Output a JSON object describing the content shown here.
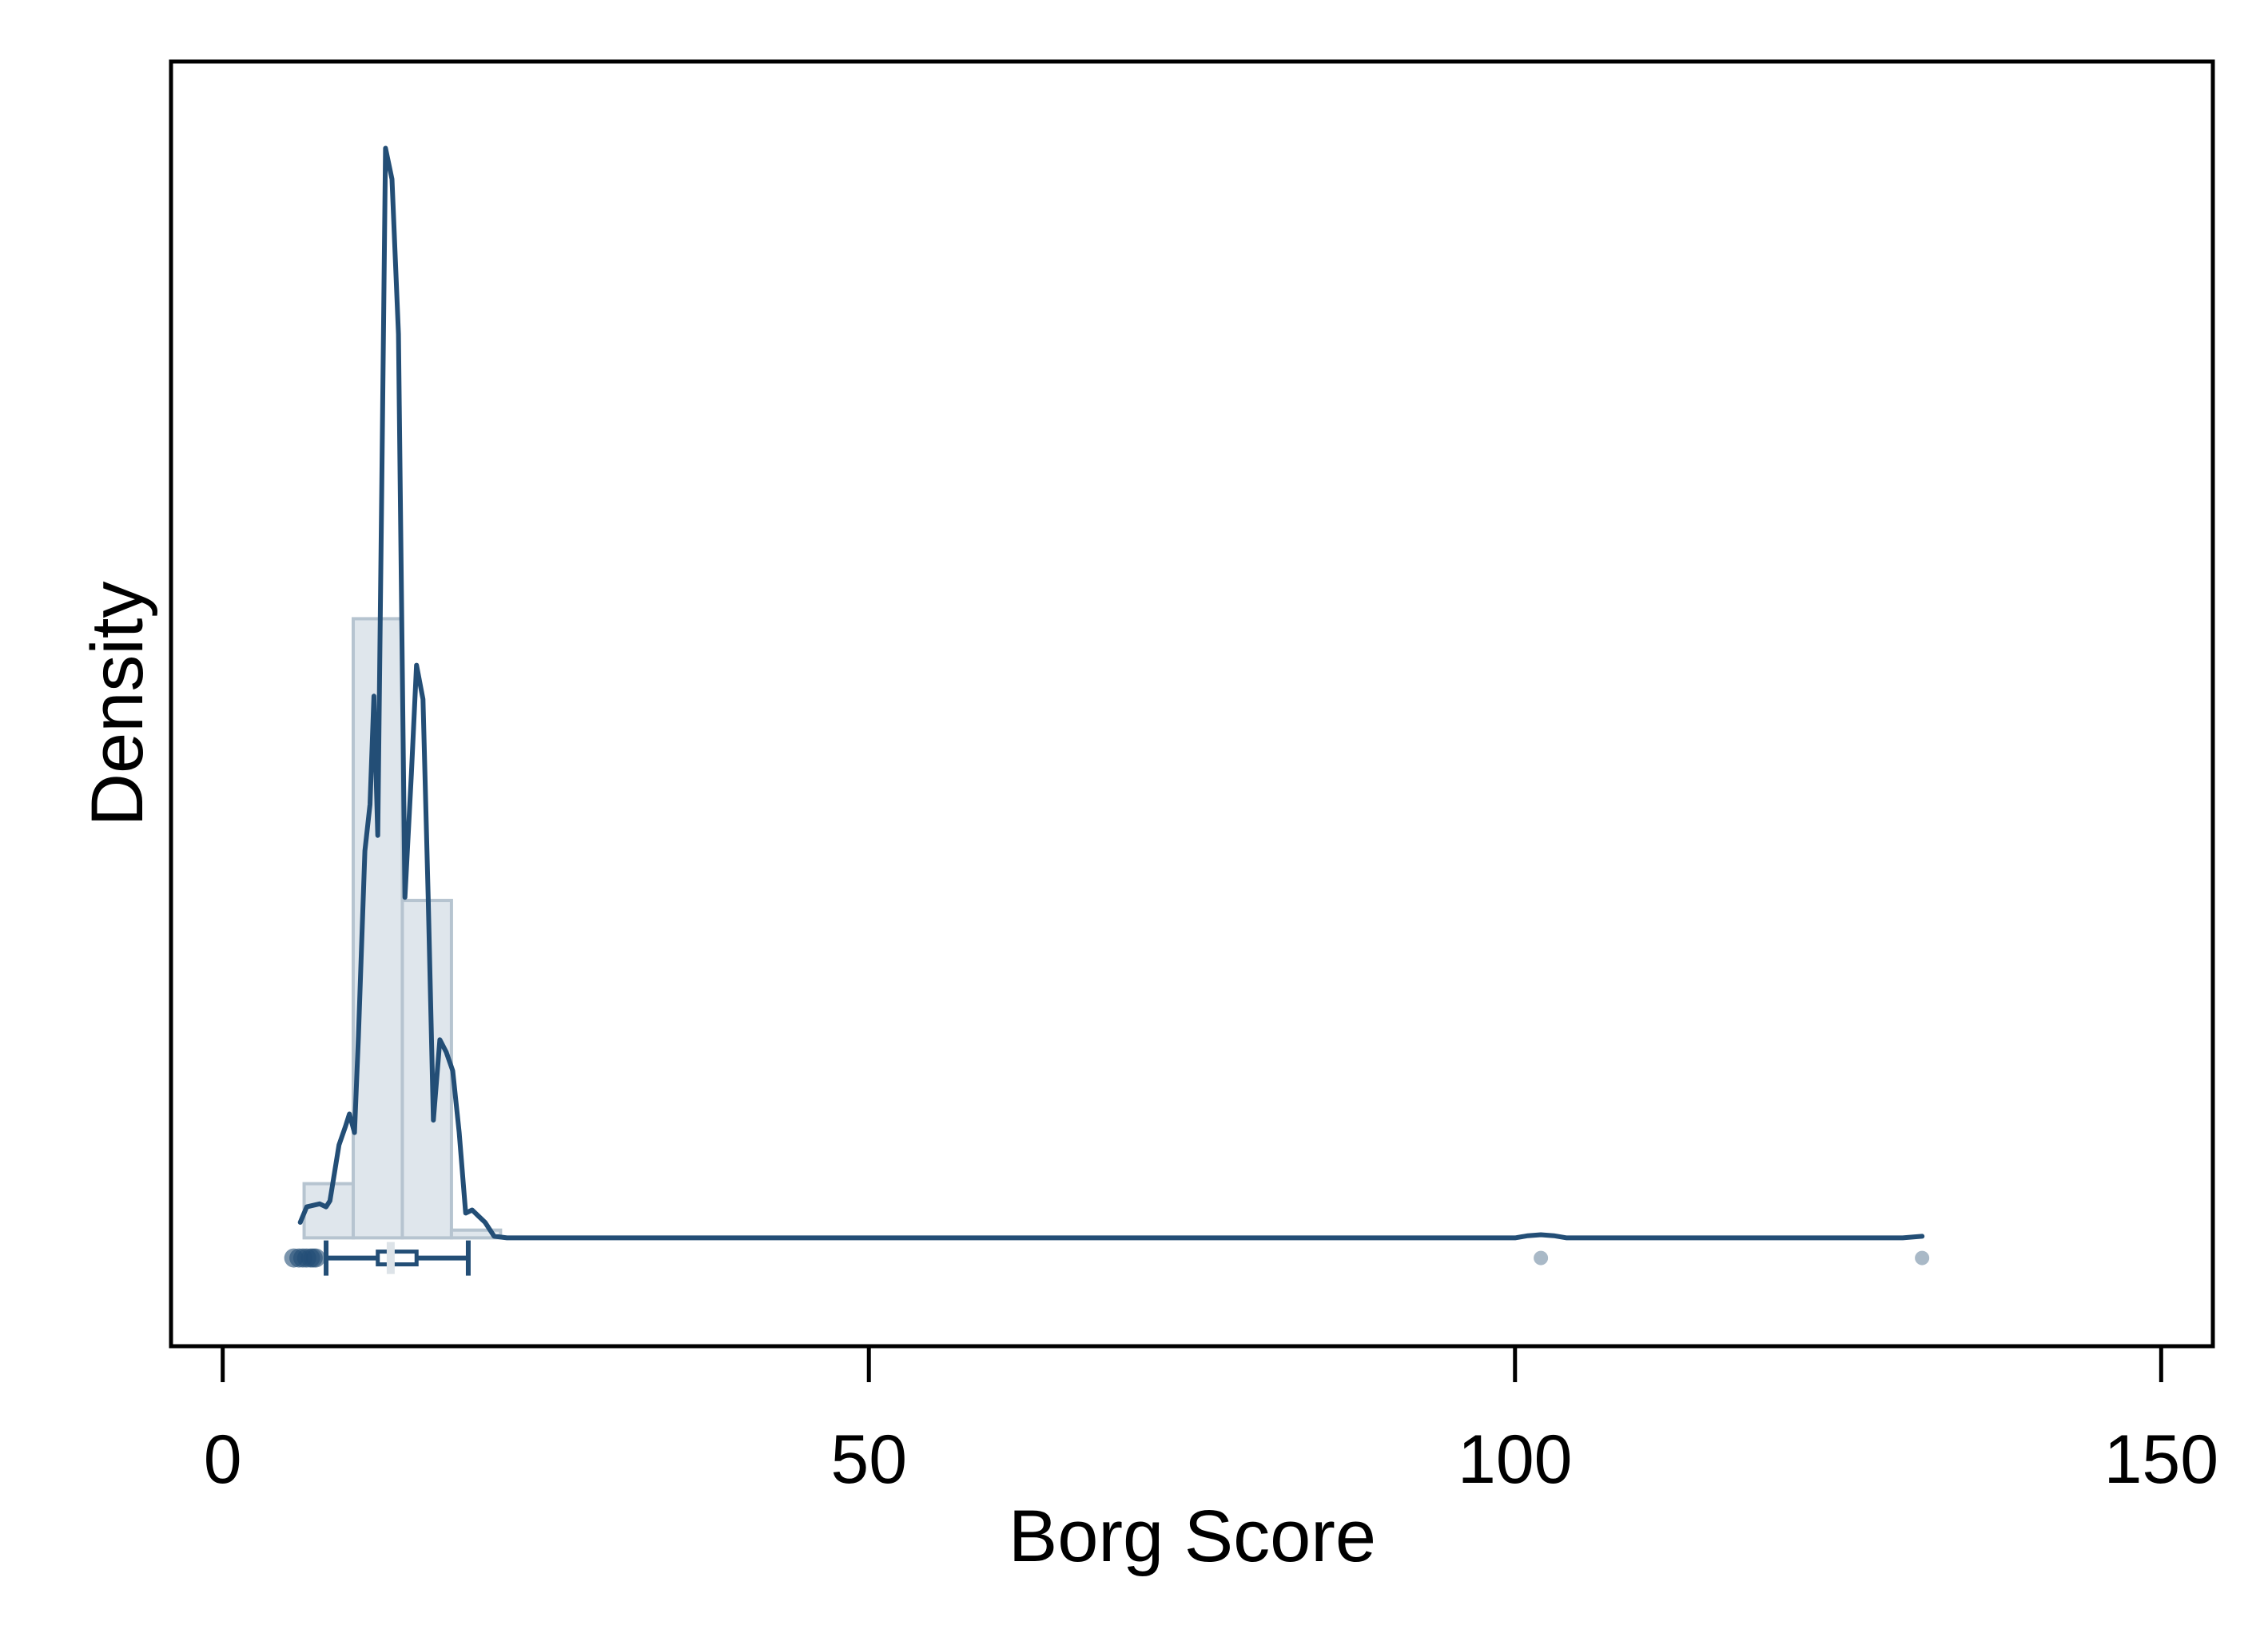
{
  "chart_data": {
    "type": "histogram",
    "xlabel": "Borg Score",
    "ylabel": "Density",
    "xlim": [
      -4,
      154
    ],
    "ylim": [
      -0.035,
      0.38
    ],
    "x_ticks": [
      0,
      50,
      100,
      150
    ],
    "y_ticks_shown": false,
    "grid": false,
    "colors": {
      "line": "#234e76",
      "bar_fill": "#dfe6ec",
      "bar_edge": "#b6c4d0",
      "outlier": "#a9b9c7"
    },
    "histogram": {
      "bin_edges": [
        6.3,
        10.1,
        13.9,
        17.7,
        21.5
      ],
      "density": [
        0.0175,
        0.2,
        0.109,
        0.0025
      ]
    },
    "kde": {
      "x": [
        6.0,
        6.5,
        7.5,
        8.0,
        8.3,
        9.0,
        9.5,
        9.8,
        10.2,
        10.5,
        11.0,
        11.4,
        11.7,
        12.0,
        12.3,
        12.6,
        13.1,
        13.6,
        14.1,
        14.6,
        15.0,
        15.5,
        15.9,
        16.3,
        16.8,
        17.3,
        17.8,
        18.3,
        18.8,
        19.3,
        19.8,
        20.3,
        21.0,
        22.0,
        30,
        50,
        70,
        90,
        100,
        101,
        102,
        103,
        104,
        110,
        120,
        128,
        130,
        131.5
      ],
      "y": [
        0.005,
        0.01,
        0.011,
        0.01,
        0.012,
        0.03,
        0.036,
        0.04,
        0.034,
        0.065,
        0.125,
        0.14,
        0.175,
        0.13,
        0.24,
        0.352,
        0.342,
        0.292,
        0.11,
        0.15,
        0.185,
        0.174,
        0.11,
        0.038,
        0.064,
        0.06,
        0.054,
        0.034,
        0.008,
        0.009,
        0.007,
        0.005,
        0.0005,
        0.0,
        0.0,
        0.0,
        0.0,
        0.0,
        0.0,
        0.0007,
        0.001,
        0.0007,
        0.0,
        0.0,
        0.0,
        0.0,
        0.0,
        0.0005
      ]
    },
    "boxplot": {
      "whisker_low": 8,
      "q1": 12,
      "median": 13,
      "q3": 15,
      "whisker_high": 19
    },
    "outliers": [
      5.5,
      5.9,
      6.2,
      6.5,
      6.8,
      7.0,
      7.2,
      102,
      131.5
    ]
  }
}
